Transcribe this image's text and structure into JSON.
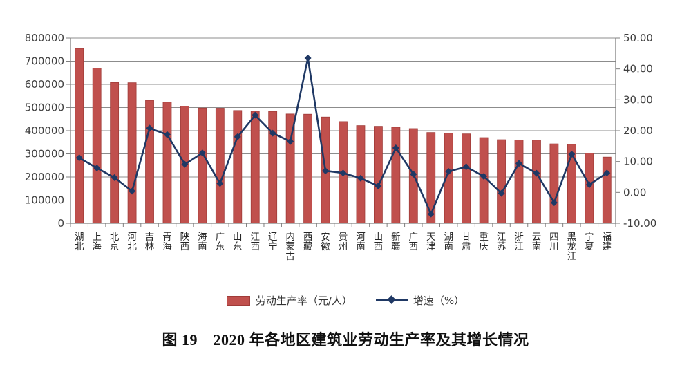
{
  "figure": {
    "caption": "图 19　2020 年各地区建筑业劳动生产率及其增长情况"
  },
  "legend": {
    "bar_label": "劳动生产率（元/人）",
    "line_label": "增速（%）"
  },
  "colors": {
    "bar": "#c0504d",
    "bar_edge": "#a03b38",
    "line": "#1f3864",
    "grid": "#8c8c8c",
    "axis": "#7f7f7f",
    "tick_text": "#3f3f3f"
  },
  "chart_data": {
    "type": "bar",
    "subtype": "bar+line dual axis",
    "title": "图 19　2020 年各地区建筑业劳动生产率及其增长情况",
    "categories": [
      "湖北",
      "上海",
      "北京",
      "河北",
      "吉林",
      "青海",
      "陕西",
      "海南",
      "广东",
      "山东",
      "江西",
      "辽宁",
      "内蒙古",
      "西藏",
      "安徽",
      "贵州",
      "河南",
      "山西",
      "新疆",
      "广西",
      "天津",
      "湖南",
      "甘肃",
      "重庆",
      "江苏",
      "浙江",
      "云南",
      "四川",
      "黑龙江",
      "宁夏",
      "福建"
    ],
    "series": [
      {
        "name": "劳动生产率（元/人）",
        "type": "bar",
        "axis": "left",
        "values": [
          755000,
          670000,
          608000,
          607000,
          531000,
          523000,
          506000,
          498000,
          497000,
          487000,
          484000,
          483000,
          472000,
          471000,
          459000,
          439000,
          422000,
          419000,
          415000,
          409000,
          392000,
          389000,
          386000,
          370000,
          361000,
          360000,
          359000,
          343000,
          341000,
          303000,
          286000
        ]
      },
      {
        "name": "增速（%）",
        "type": "line",
        "axis": "right",
        "values": [
          11.2,
          7.9,
          4.8,
          0.4,
          20.8,
          18.7,
          9.1,
          12.8,
          2.9,
          18.0,
          25.0,
          19.2,
          16.5,
          43.5,
          7.0,
          6.3,
          4.6,
          2.1,
          14.4,
          5.9,
          -7.0,
          6.8,
          8.3,
          5.2,
          -0.3,
          9.4,
          6.2,
          -3.3,
          12.4,
          2.5,
          6.3
        ]
      }
    ],
    "left_axis": {
      "min": 0,
      "max": 800000,
      "step": 100000
    },
    "right_axis": {
      "min": -10,
      "max": 50,
      "step": 10,
      "decimals": 2
    },
    "grid": true,
    "legend_position": "bottom"
  }
}
